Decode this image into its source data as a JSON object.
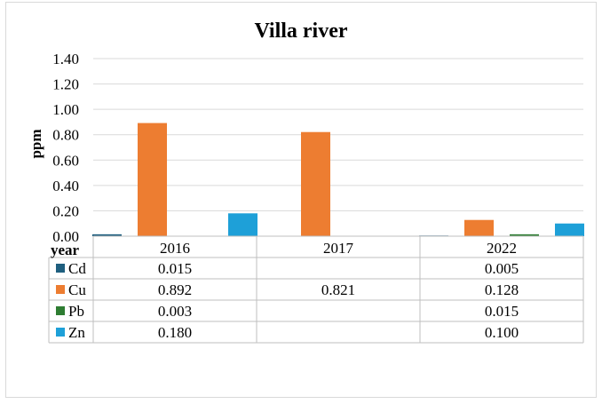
{
  "chart_data": {
    "type": "bar",
    "title": "Villa river",
    "ylabel": "ppm",
    "table_header": "year",
    "categories": [
      "2016",
      "2017",
      "2022"
    ],
    "ylim": [
      0,
      1.4
    ],
    "yticks": [
      "0.00",
      "0.20",
      "0.40",
      "0.60",
      "0.80",
      "1.00",
      "1.20",
      "1.40"
    ],
    "grid": true,
    "legend": "data-table",
    "series": [
      {
        "name": "Cd",
        "color": "#1f5f7f",
        "values": [
          0.015,
          null,
          0.005
        ],
        "labels": [
          "0.015",
          "",
          "0.005"
        ]
      },
      {
        "name": "Cu",
        "color": "#ed7d31",
        "values": [
          0.892,
          0.821,
          0.128
        ],
        "labels": [
          "0.892",
          "0.821",
          "0.128"
        ]
      },
      {
        "name": "Pb",
        "color": "#2e7d32",
        "values": [
          0.003,
          null,
          0.015
        ],
        "labels": [
          "0.003",
          "",
          "0.015"
        ]
      },
      {
        "name": "Zn",
        "color": "#1ea0d8",
        "values": [
          0.18,
          null,
          0.1
        ],
        "labels": [
          "0.180",
          "",
          "0.100"
        ]
      }
    ]
  }
}
